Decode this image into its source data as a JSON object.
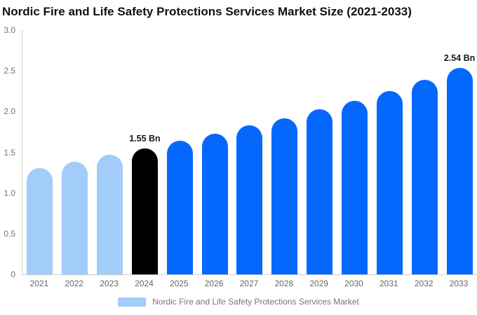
{
  "chart": {
    "title": "Nordic Fire and Life Safety Protections Services Market Size (2021-2033)"
  },
  "chart_data": {
    "type": "bar",
    "title": "Nordic Fire and Life Safety Protections Services Market Size (2021-2033)",
    "unit": "Bn",
    "categories": [
      "2021",
      "2022",
      "2023",
      "2024",
      "2025",
      "2026",
      "2027",
      "2028",
      "2029",
      "2030",
      "2031",
      "2032",
      "2033"
    ],
    "series": [
      {
        "name": "Nordic Fire and Life Safety Protections Services Market",
        "values": [
          1.31,
          1.38,
          1.47,
          1.55,
          1.64,
          1.73,
          1.83,
          1.92,
          2.03,
          2.13,
          2.25,
          2.39,
          2.54
        ]
      }
    ],
    "color_keys": [
      "historical",
      "historical",
      "historical",
      "highlight",
      "forecast",
      "forecast",
      "forecast",
      "forecast",
      "forecast",
      "forecast",
      "forecast",
      "forecast",
      "forecast"
    ],
    "colors": {
      "historical": "#a2ccfa",
      "highlight": "#000000",
      "forecast": "#0568fc",
      "axis_line": "#cccccc",
      "tick_text": "#757575",
      "annotation_text": "#1a1a1a"
    },
    "annotations": [
      {
        "category": "2024",
        "text": "1.55 Bn"
      },
      {
        "category": "2033",
        "text": "2.54 Bn"
      }
    ],
    "xlabel": "",
    "ylabel": "",
    "ylim": [
      0,
      3
    ],
    "yticks": [
      {
        "label": "3.0",
        "value": 3.0
      },
      {
        "label": "2.5",
        "value": 2.5
      },
      {
        "label": "2.0",
        "value": 2.0
      },
      {
        "label": "1.5",
        "value": 1.5
      },
      {
        "label": "1.0",
        "value": 1.0
      },
      {
        "label": "0.5",
        "value": 0.5
      },
      {
        "label": "0",
        "value": 0.0
      }
    ],
    "grid": false,
    "legend_position": "bottom"
  },
  "legend": {
    "label": "Nordic Fire and Life Safety Protections Services Market"
  }
}
